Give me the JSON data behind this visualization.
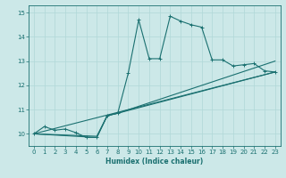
{
  "xlabel": "Humidex (Indice chaleur)",
  "xlim": [
    -0.5,
    23.5
  ],
  "ylim": [
    9.5,
    15.3
  ],
  "yticks": [
    10,
    11,
    12,
    13,
    14,
    15
  ],
  "xticks": [
    0,
    1,
    2,
    3,
    4,
    5,
    6,
    7,
    8,
    9,
    10,
    11,
    12,
    13,
    14,
    15,
    16,
    17,
    18,
    19,
    20,
    21,
    22,
    23
  ],
  "bg_color": "#cce8e8",
  "line_color": "#1a7070",
  "grid_color": "#b0d8d8",
  "jagged_x": [
    0,
    1,
    2,
    3,
    4,
    5,
    6,
    7,
    8,
    9,
    10,
    11,
    12,
    13,
    14,
    15,
    16,
    17,
    18,
    19,
    20,
    21,
    22,
    23
  ],
  "jagged_y": [
    10.0,
    10.3,
    10.15,
    10.2,
    10.05,
    9.85,
    9.85,
    10.75,
    10.85,
    12.5,
    14.7,
    13.1,
    13.1,
    14.85,
    14.65,
    14.5,
    14.4,
    13.05,
    13.05,
    12.8,
    12.85,
    12.9,
    12.6,
    12.55
  ],
  "line1_x": [
    0,
    23
  ],
  "line1_y": [
    10.0,
    12.55
  ],
  "line2_x": [
    0,
    6,
    7,
    8,
    23
  ],
  "line2_y": [
    10.0,
    9.9,
    10.75,
    10.85,
    13.0
  ],
  "line3_x": [
    0,
    6,
    7,
    8,
    23
  ],
  "line3_y": [
    10.0,
    9.85,
    10.75,
    10.85,
    12.55
  ]
}
